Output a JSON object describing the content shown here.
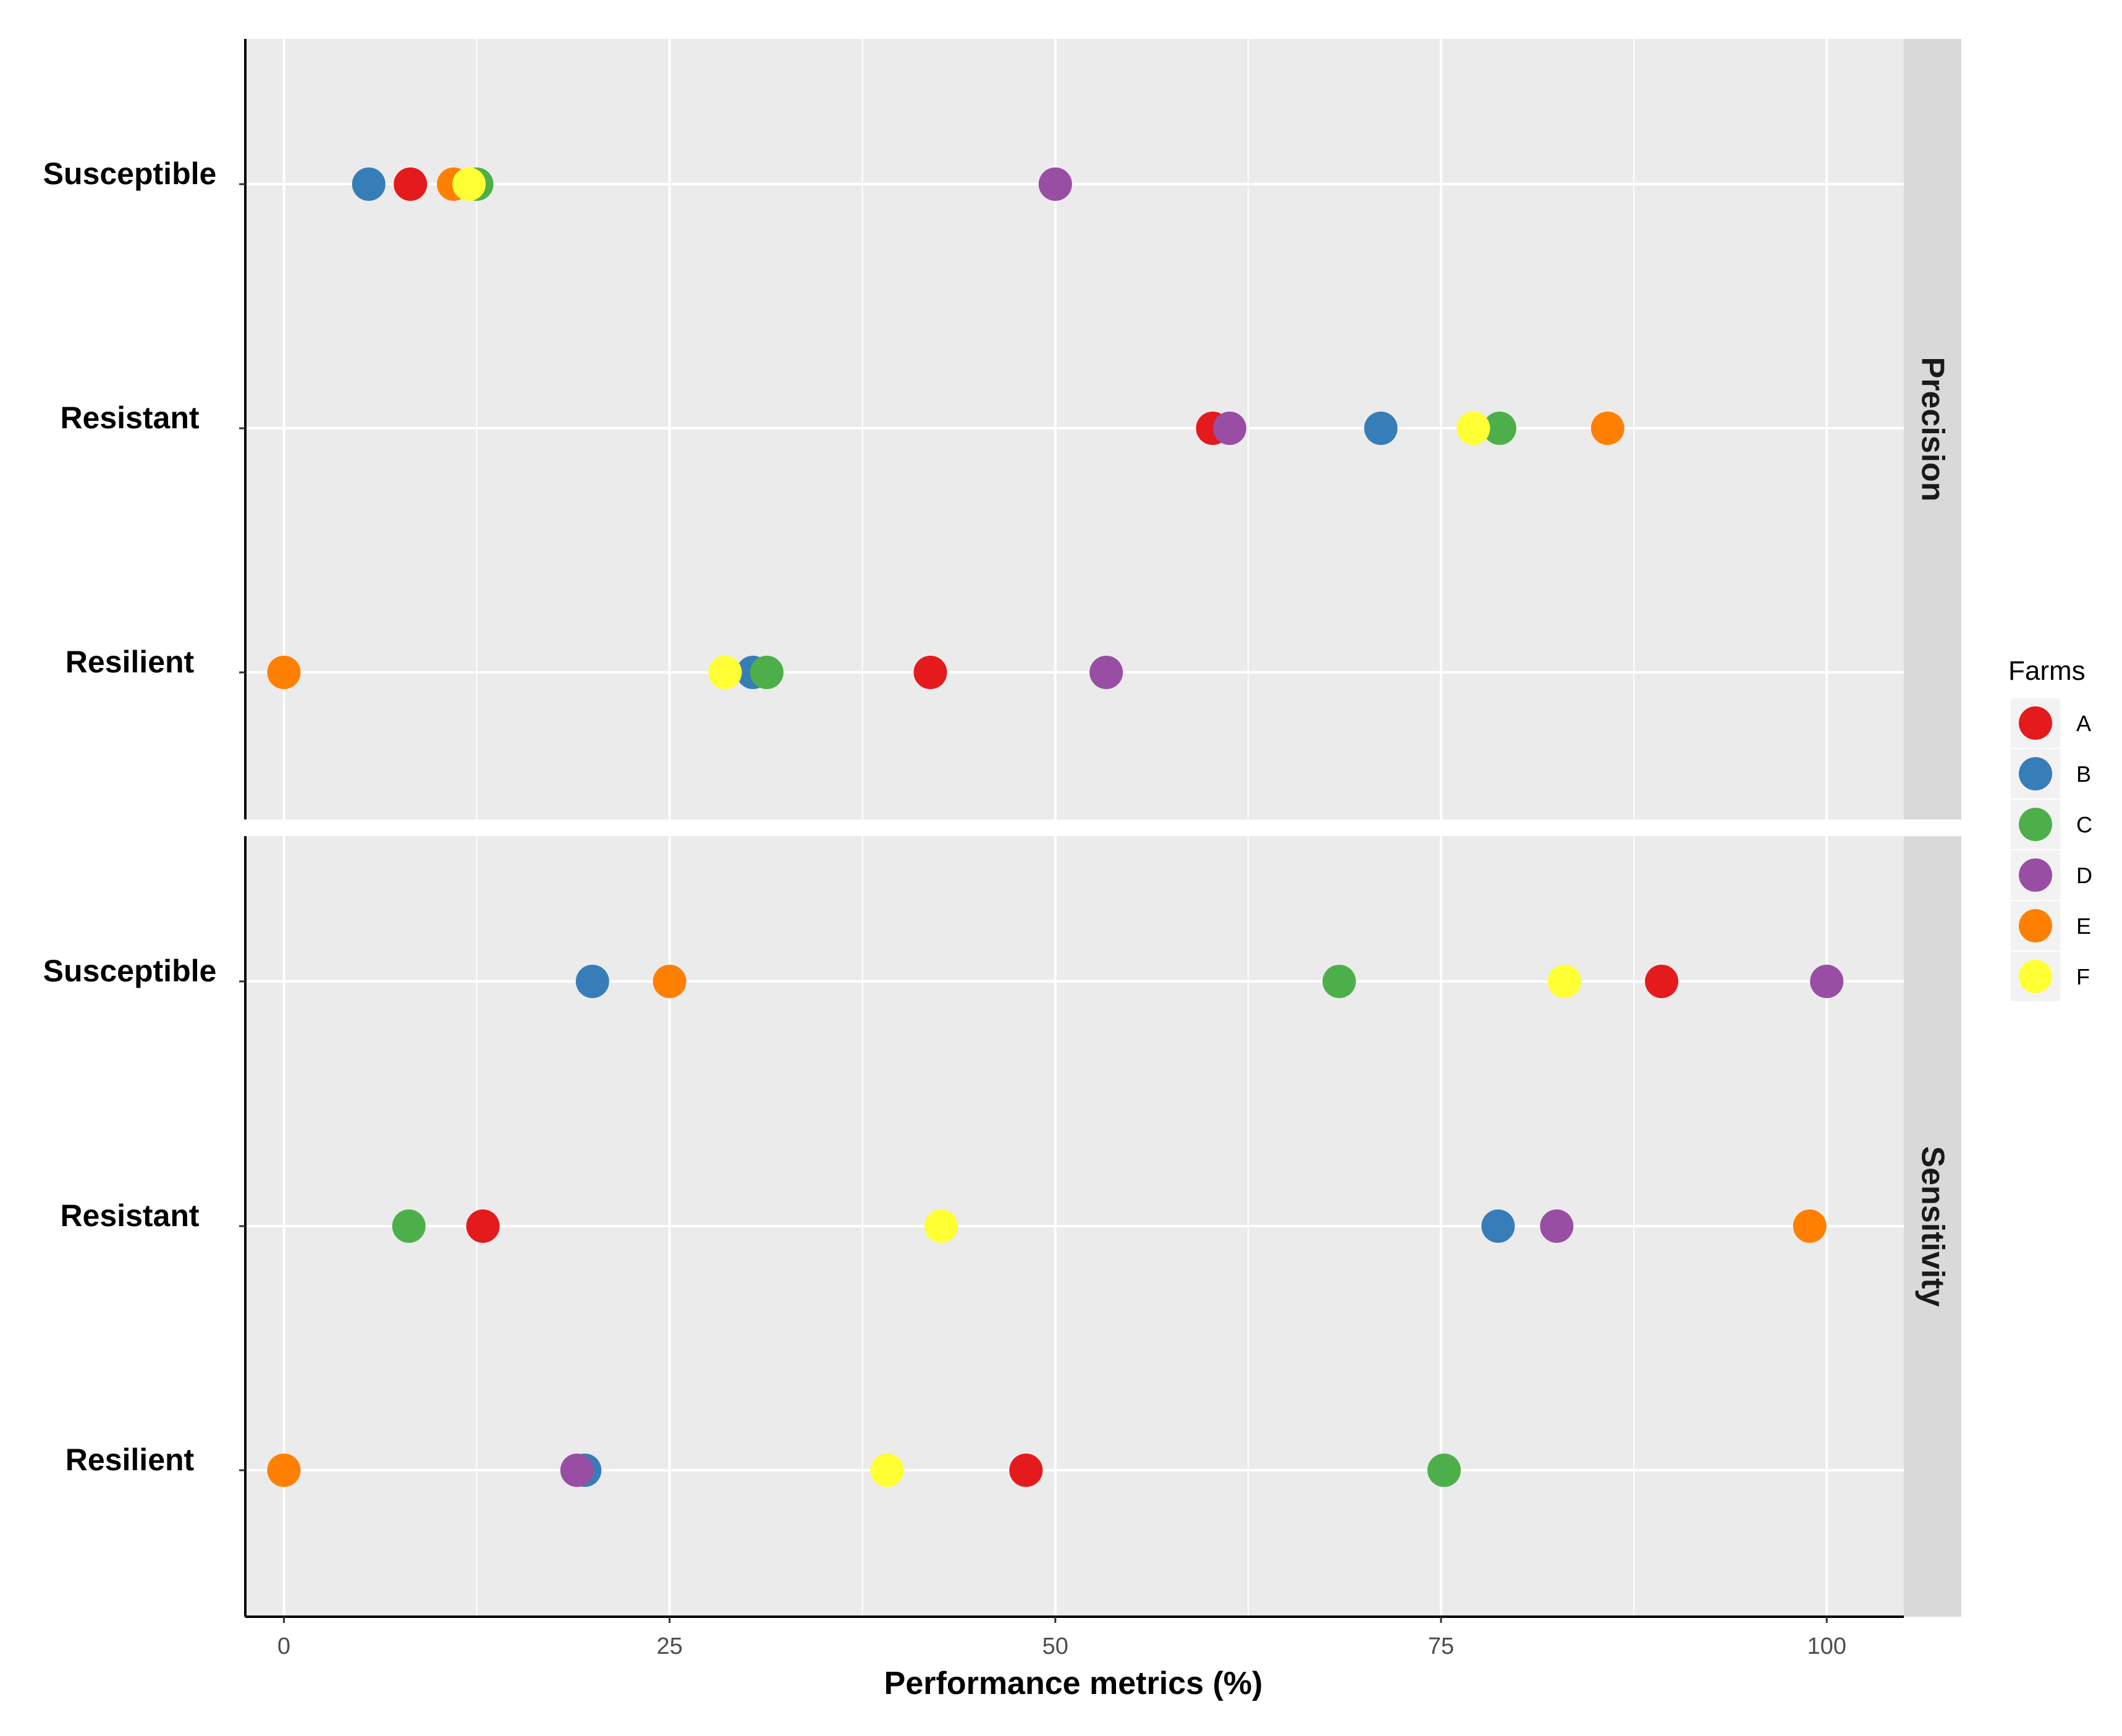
{
  "chart_data": {
    "type": "scatter",
    "xlabel": "Performance metrics (%)",
    "xlim": [
      -2.5,
      105
    ],
    "xticks": [
      0,
      25,
      50,
      75,
      100
    ],
    "xtick_labels": [
      "0",
      "25",
      "50",
      "75",
      "100"
    ],
    "categories": [
      "Susceptible",
      "Resistant",
      "Resilient"
    ],
    "legend": {
      "title": "Farms",
      "position": "right",
      "items": [
        {
          "label": "A",
          "color": "#e41a1c"
        },
        {
          "label": "B",
          "color": "#377eb8"
        },
        {
          "label": "C",
          "color": "#4daf4a"
        },
        {
          "label": "D",
          "color": "#984ea3"
        },
        {
          "label": "E",
          "color": "#ff7f00"
        },
        {
          "label": "F",
          "color": "#ffff33"
        }
      ]
    },
    "panels": [
      {
        "strip": "Precision",
        "points": [
          {
            "category": "Susceptible",
            "farm": "B",
            "value": 5.5
          },
          {
            "category": "Susceptible",
            "farm": "A",
            "value": 8.2
          },
          {
            "category": "Susceptible",
            "farm": "C",
            "value": 12.5
          },
          {
            "category": "Susceptible",
            "farm": "E",
            "value": 11.0
          },
          {
            "category": "Susceptible",
            "farm": "F",
            "value": 12.0
          },
          {
            "category": "Susceptible",
            "farm": "D",
            "value": 50.0
          },
          {
            "category": "Resistant",
            "farm": "A",
            "value": 60.2
          },
          {
            "category": "Resistant",
            "farm": "D",
            "value": 61.3
          },
          {
            "category": "Resistant",
            "farm": "B",
            "value": 71.1
          },
          {
            "category": "Resistant",
            "farm": "C",
            "value": 78.8
          },
          {
            "category": "Resistant",
            "farm": "F",
            "value": 77.1
          },
          {
            "category": "Resistant",
            "farm": "E",
            "value": 85.8
          },
          {
            "category": "Resilient",
            "farm": "E",
            "value": 0.0
          },
          {
            "category": "Resilient",
            "farm": "B",
            "value": 30.4
          },
          {
            "category": "Resilient",
            "farm": "C",
            "value": 31.3
          },
          {
            "category": "Resilient",
            "farm": "F",
            "value": 28.6
          },
          {
            "category": "Resilient",
            "farm": "A",
            "value": 41.9
          },
          {
            "category": "Resilient",
            "farm": "D",
            "value": 53.3
          }
        ]
      },
      {
        "strip": "Sensitivity",
        "points": [
          {
            "category": "Susceptible",
            "farm": "B",
            "value": 20.0
          },
          {
            "category": "Susceptible",
            "farm": "E",
            "value": 25.0
          },
          {
            "category": "Susceptible",
            "farm": "C",
            "value": 68.4
          },
          {
            "category": "Susceptible",
            "farm": "F",
            "value": 83.0
          },
          {
            "category": "Susceptible",
            "farm": "A",
            "value": 89.3
          },
          {
            "category": "Susceptible",
            "farm": "D",
            "value": 100.0
          },
          {
            "category": "Resistant",
            "farm": "C",
            "value": 8.1
          },
          {
            "category": "Resistant",
            "farm": "A",
            "value": 12.9
          },
          {
            "category": "Resistant",
            "farm": "F",
            "value": 42.6
          },
          {
            "category": "Resistant",
            "farm": "B",
            "value": 78.7
          },
          {
            "category": "Resistant",
            "farm": "D",
            "value": 82.5
          },
          {
            "category": "Resistant",
            "farm": "E",
            "value": 98.9
          },
          {
            "category": "Resilient",
            "farm": "E",
            "value": 0.0
          },
          {
            "category": "Resilient",
            "farm": "B",
            "value": 19.5
          },
          {
            "category": "Resilient",
            "farm": "D",
            "value": 19.0
          },
          {
            "category": "Resilient",
            "farm": "F",
            "value": 39.1
          },
          {
            "category": "Resilient",
            "farm": "A",
            "value": 48.1
          },
          {
            "category": "Resilient",
            "farm": "C",
            "value": 75.2
          }
        ]
      }
    ]
  }
}
